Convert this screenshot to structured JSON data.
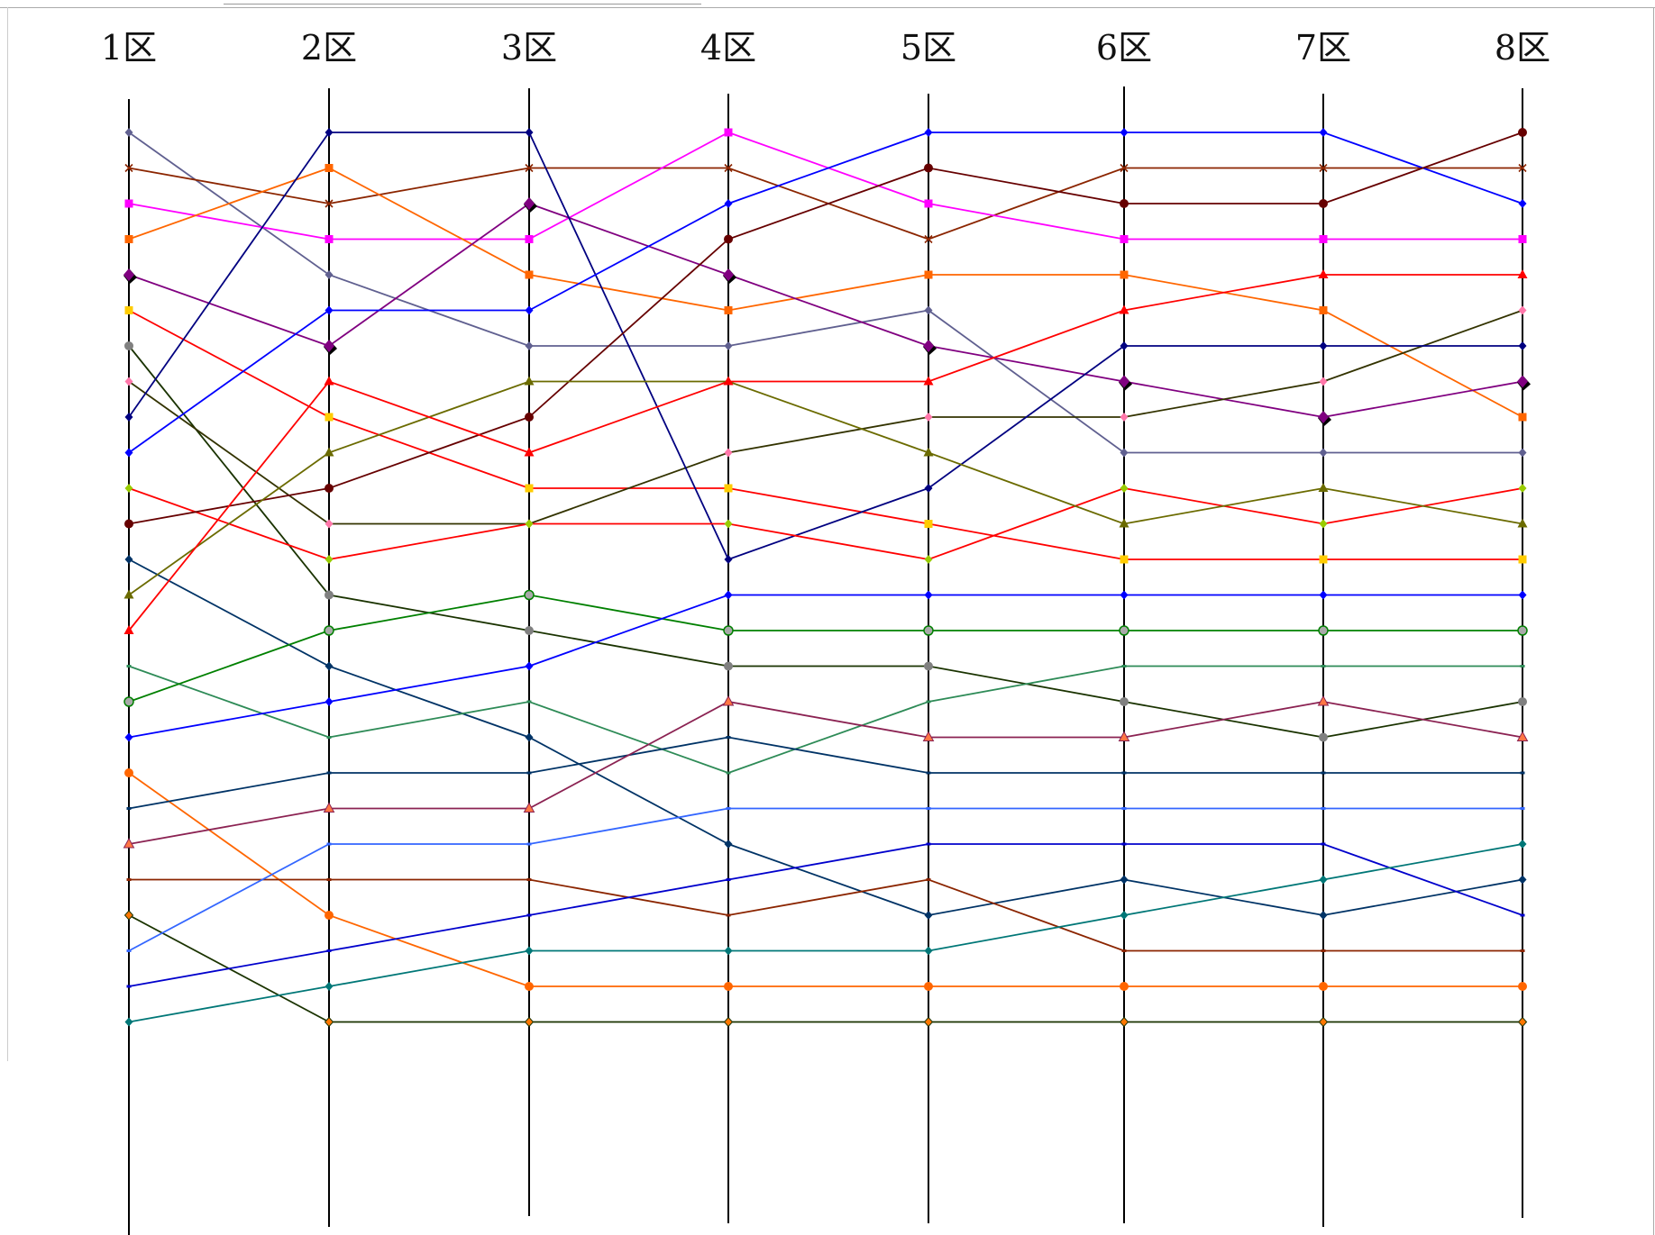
{
  "chart_data": {
    "type": "line",
    "categories": [
      "1区",
      "2区",
      "3区",
      "4区",
      "5区",
      "6区",
      "7区",
      "8区"
    ],
    "ylim": [
      1,
      26
    ],
    "y_inverted": true,
    "grid": false,
    "legend": "none",
    "series": [
      {
        "color": "#606090",
        "marker": "diamond",
        "values": [
          1,
          5,
          7,
          7,
          6,
          10,
          10,
          10
        ]
      },
      {
        "color": "#8B2500",
        "marker": "x",
        "values": [
          2,
          3,
          2,
          2,
          4,
          2,
          2,
          2
        ]
      },
      {
        "color": "#FF00FF",
        "marker": "square",
        "values": [
          3,
          4,
          4,
          1,
          3,
          4,
          4,
          4
        ]
      },
      {
        "color": "#FF6600",
        "marker": "square",
        "values": [
          4,
          2,
          5,
          6,
          5,
          5,
          6,
          9
        ]
      },
      {
        "color": "#800080",
        "marker": "bigdiamond",
        "values": [
          5,
          7,
          3,
          5,
          7,
          8,
          9,
          8
        ]
      },
      {
        "color": "#FF0000",
        "marker": "square-gold",
        "values": [
          6,
          9,
          11,
          11,
          12,
          13,
          13,
          13
        ]
      },
      {
        "color": "#1A3300",
        "marker": "circle-gray",
        "values": [
          7,
          14,
          15,
          16,
          16,
          17,
          18,
          17
        ]
      },
      {
        "color": "#333300",
        "marker": "diamond-pink",
        "values": [
          8,
          12,
          12,
          10,
          9,
          9,
          8,
          6
        ]
      },
      {
        "color": "#000080",
        "marker": "diamond",
        "values": [
          9,
          1,
          1,
          13,
          11,
          7,
          7,
          7
        ]
      },
      {
        "color": "#0000FF",
        "marker": "diamond",
        "values": [
          10,
          6,
          6,
          3,
          1,
          1,
          1,
          3
        ]
      },
      {
        "color": "#FF0000",
        "marker": "diamond-yellowgreen",
        "values": [
          11,
          13,
          12,
          12,
          13,
          11,
          12,
          11
        ]
      },
      {
        "color": "#660000",
        "marker": "circle",
        "values": [
          12,
          11,
          9,
          4,
          2,
          3,
          3,
          1
        ]
      },
      {
        "color": "#003366",
        "marker": "diamond",
        "values": [
          13,
          16,
          18,
          21,
          23,
          22,
          23,
          22
        ]
      },
      {
        "color": "#6B6B00",
        "marker": "triangle",
        "values": [
          14,
          10,
          8,
          8,
          10,
          12,
          11,
          12
        ]
      },
      {
        "color": "#FF0000",
        "marker": "triangle",
        "values": [
          15,
          8,
          10,
          8,
          8,
          6,
          5,
          5
        ]
      },
      {
        "color": "#2E8B57",
        "marker": "dash",
        "values": [
          16,
          18,
          17,
          19,
          17,
          16,
          16,
          16
        ]
      },
      {
        "color": "#008000",
        "marker": "circle-light",
        "values": [
          17,
          15,
          14,
          15,
          15,
          15,
          15,
          15
        ]
      },
      {
        "color": "#0000FF",
        "marker": "diamond",
        "values": [
          18,
          17,
          16,
          14,
          14,
          14,
          14,
          14
        ]
      },
      {
        "color": "#FF6600",
        "marker": "circle",
        "values": [
          19,
          23,
          25,
          25,
          25,
          25,
          25,
          25
        ]
      },
      {
        "color": "#003366",
        "marker": "dash",
        "values": [
          20,
          19,
          19,
          18,
          19,
          19,
          19,
          19
        ]
      },
      {
        "color": "#8B2252",
        "marker": "triangle-orange",
        "values": [
          21,
          20,
          20,
          17,
          18,
          18,
          17,
          18
        ]
      },
      {
        "color": "#8B2500",
        "marker": "dash",
        "values": [
          22,
          22,
          22,
          23,
          22,
          24,
          24,
          24
        ]
      },
      {
        "color": "#1A3300",
        "marker": "diamond-orange",
        "values": [
          23,
          26,
          26,
          26,
          26,
          26,
          26,
          26
        ]
      },
      {
        "color": "#3366FF",
        "marker": "dash",
        "values": [
          24,
          21,
          21,
          20,
          20,
          20,
          20,
          20
        ]
      },
      {
        "color": "#0000CC",
        "marker": "dash",
        "values": [
          25,
          24,
          23,
          22,
          21,
          21,
          21,
          23
        ]
      },
      {
        "color": "#007777",
        "marker": "diamond",
        "values": [
          26,
          25,
          24,
          24,
          24,
          23,
          22,
          21
        ]
      }
    ]
  }
}
